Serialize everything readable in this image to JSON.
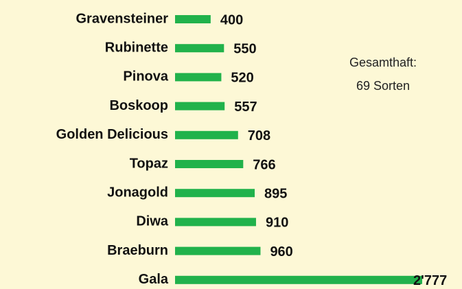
{
  "chart_data": {
    "type": "bar",
    "orientation": "horizontal",
    "categories": [
      "Gravensteiner",
      "Rubinette",
      "Pinova",
      "Boskoop",
      "Golden Delicious",
      "Topaz",
      "Jonagold",
      "Diwa",
      "Braeburn",
      "Gala"
    ],
    "values": [
      400,
      550,
      520,
      557,
      708,
      766,
      895,
      910,
      960,
      2777
    ],
    "value_labels": [
      "400",
      "550",
      "520",
      "557",
      "708",
      "766",
      "895",
      "910",
      "960",
      "2'777"
    ],
    "color": "#21b24b",
    "annotation": [
      "Gesamthaft:",
      "69 Sorten"
    ]
  }
}
